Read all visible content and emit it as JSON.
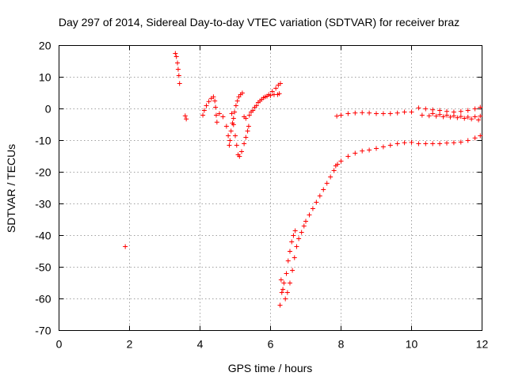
{
  "chart_data": {
    "type": "scatter",
    "title": "Day 297 of 2014, Sidereal Day-to-day VTEC variation (SDTVAR) for receiver braz",
    "xlabel": "GPS time / hours",
    "ylabel": "SDTVAR / TECUs",
    "xlim": [
      0,
      12
    ],
    "ylim": [
      -70,
      20
    ],
    "xticks": [
      0,
      2,
      4,
      6,
      8,
      10,
      12
    ],
    "yticks": [
      20,
      10,
      0,
      -10,
      -20,
      -30,
      -40,
      -50,
      -60,
      -70
    ],
    "grid": true,
    "marker": "+",
    "colors": {
      "series": "#ff0000",
      "grid": "#a0a0a0",
      "axes": "#000000"
    },
    "series": [
      {
        "name": "SDTVAR",
        "points": [
          [
            1.88,
            -43.5
          ],
          [
            3.3,
            17.5
          ],
          [
            3.33,
            16.5
          ],
          [
            3.36,
            14.5
          ],
          [
            3.38,
            12.5
          ],
          [
            3.4,
            10.5
          ],
          [
            3.42,
            8.0
          ],
          [
            3.58,
            -2.2
          ],
          [
            3.61,
            -3.2
          ],
          [
            4.08,
            -2.0
          ],
          [
            4.12,
            -0.5
          ],
          [
            4.18,
            1.0
          ],
          [
            4.25,
            2.3
          ],
          [
            4.32,
            3.3
          ],
          [
            4.38,
            3.8
          ],
          [
            4.42,
            2.5
          ],
          [
            4.44,
            0.5
          ],
          [
            4.46,
            -2.0
          ],
          [
            4.48,
            -4.2
          ],
          [
            4.55,
            -1.5
          ],
          [
            4.65,
            -2.5
          ],
          [
            4.75,
            -5.5
          ],
          [
            4.8,
            -8.5
          ],
          [
            4.83,
            -11.5
          ],
          [
            4.85,
            -10.0
          ],
          [
            4.88,
            -7.0
          ],
          [
            4.92,
            -4.5
          ],
          [
            4.95,
            -3.0
          ],
          [
            4.98,
            -1.0
          ],
          [
            5.02,
            1.0
          ],
          [
            5.06,
            2.5
          ],
          [
            5.1,
            3.8
          ],
          [
            5.15,
            4.5
          ],
          [
            5.2,
            5.0
          ],
          [
            4.9,
            -1.5
          ],
          [
            4.95,
            -5.0
          ],
          [
            5.0,
            -8.5
          ],
          [
            5.04,
            -11.5
          ],
          [
            5.08,
            -14.5
          ],
          [
            5.12,
            -15.0
          ],
          [
            5.18,
            -13.5
          ],
          [
            5.25,
            -11.0
          ],
          [
            5.3,
            -9.0
          ],
          [
            5.35,
            -7.0
          ],
          [
            5.38,
            -5.5
          ],
          [
            5.25,
            -2.5
          ],
          [
            5.3,
            -3.0
          ],
          [
            5.4,
            -2.0
          ],
          [
            5.5,
            -0.5
          ],
          [
            5.6,
            1.0
          ],
          [
            5.7,
            2.5
          ],
          [
            5.8,
            3.5
          ],
          [
            5.9,
            4.0
          ],
          [
            6.0,
            4.2
          ],
          [
            6.1,
            4.5
          ],
          [
            6.2,
            4.5
          ],
          [
            6.25,
            4.8
          ],
          [
            5.45,
            -1.0
          ],
          [
            5.55,
            0.5
          ],
          [
            5.65,
            2.0
          ],
          [
            5.75,
            3.0
          ],
          [
            5.85,
            3.8
          ],
          [
            5.95,
            4.5
          ],
          [
            6.05,
            5.5
          ],
          [
            6.15,
            6.5
          ],
          [
            6.22,
            7.5
          ],
          [
            6.28,
            8.0
          ],
          [
            6.27,
            -62.0
          ],
          [
            6.32,
            -58.0
          ],
          [
            6.38,
            -55.0
          ],
          [
            6.45,
            -52.0
          ],
          [
            6.5,
            -48.0
          ],
          [
            6.55,
            -45.0
          ],
          [
            6.6,
            -42.0
          ],
          [
            6.65,
            -40.0
          ],
          [
            6.7,
            -38.5
          ],
          [
            6.3,
            -54.0
          ],
          [
            6.35,
            -57.0
          ],
          [
            6.42,
            -60.0
          ],
          [
            6.48,
            -58.0
          ],
          [
            6.55,
            -55.0
          ],
          [
            6.62,
            -51.0
          ],
          [
            6.68,
            -47.0
          ],
          [
            6.74,
            -43.5
          ],
          [
            6.8,
            -41.0
          ],
          [
            6.88,
            -39.0
          ],
          [
            6.95,
            -37.0
          ],
          [
            7.0,
            -35.5
          ],
          [
            7.1,
            -33.5
          ],
          [
            7.2,
            -31.5
          ],
          [
            7.3,
            -29.5
          ],
          [
            7.4,
            -27.5
          ],
          [
            7.5,
            -25.5
          ],
          [
            7.6,
            -23.5
          ],
          [
            7.7,
            -21.5
          ],
          [
            7.8,
            -19.5
          ],
          [
            7.85,
            -18.0
          ],
          [
            7.9,
            -17.5
          ],
          [
            8.0,
            -16.5
          ],
          [
            8.2,
            -15.0
          ],
          [
            8.4,
            -14.0
          ],
          [
            8.6,
            -13.3
          ],
          [
            8.8,
            -13.0
          ],
          [
            9.0,
            -12.5
          ],
          [
            9.2,
            -12.0
          ],
          [
            9.4,
            -11.5
          ],
          [
            9.6,
            -11.0
          ],
          [
            9.8,
            -10.7
          ],
          [
            10.0,
            -10.6
          ],
          [
            10.2,
            -11.0
          ],
          [
            10.4,
            -11.0
          ],
          [
            10.6,
            -11.0
          ],
          [
            10.8,
            -11.0
          ],
          [
            11.0,
            -10.8
          ],
          [
            11.2,
            -10.7
          ],
          [
            11.4,
            -10.5
          ],
          [
            11.6,
            -10.0
          ],
          [
            11.8,
            -9.2
          ],
          [
            11.95,
            -8.5
          ],
          [
            7.88,
            -2.3
          ],
          [
            8.0,
            -2.0
          ],
          [
            8.2,
            -1.5
          ],
          [
            8.4,
            -1.3
          ],
          [
            8.6,
            -1.2
          ],
          [
            8.8,
            -1.3
          ],
          [
            9.0,
            -1.5
          ],
          [
            9.2,
            -1.5
          ],
          [
            9.4,
            -1.5
          ],
          [
            9.6,
            -1.3
          ],
          [
            9.8,
            -1.0
          ],
          [
            10.0,
            -1.0
          ],
          [
            10.2,
            0.3
          ],
          [
            10.4,
            0.0
          ],
          [
            10.6,
            -0.3
          ],
          [
            10.8,
            -0.5
          ],
          [
            11.0,
            -0.8
          ],
          [
            11.2,
            -1.0
          ],
          [
            11.4,
            -0.8
          ],
          [
            11.6,
            -0.5
          ],
          [
            11.8,
            0.0
          ],
          [
            11.95,
            0.5
          ],
          [
            10.3,
            -2.0
          ],
          [
            10.5,
            -2.2
          ],
          [
            10.7,
            -2.3
          ],
          [
            10.9,
            -2.5
          ],
          [
            11.1,
            -2.6
          ],
          [
            11.3,
            -2.8
          ],
          [
            11.5,
            -3.0
          ],
          [
            11.7,
            -3.2
          ],
          [
            11.9,
            -3.5
          ],
          [
            10.6,
            -1.5
          ],
          [
            10.8,
            -1.8
          ],
          [
            11.0,
            -2.0
          ],
          [
            11.2,
            -2.2
          ],
          [
            11.4,
            -2.4
          ],
          [
            11.6,
            -2.6
          ],
          [
            11.8,
            -2.5
          ],
          [
            11.95,
            -2.3
          ]
        ]
      }
    ]
  }
}
